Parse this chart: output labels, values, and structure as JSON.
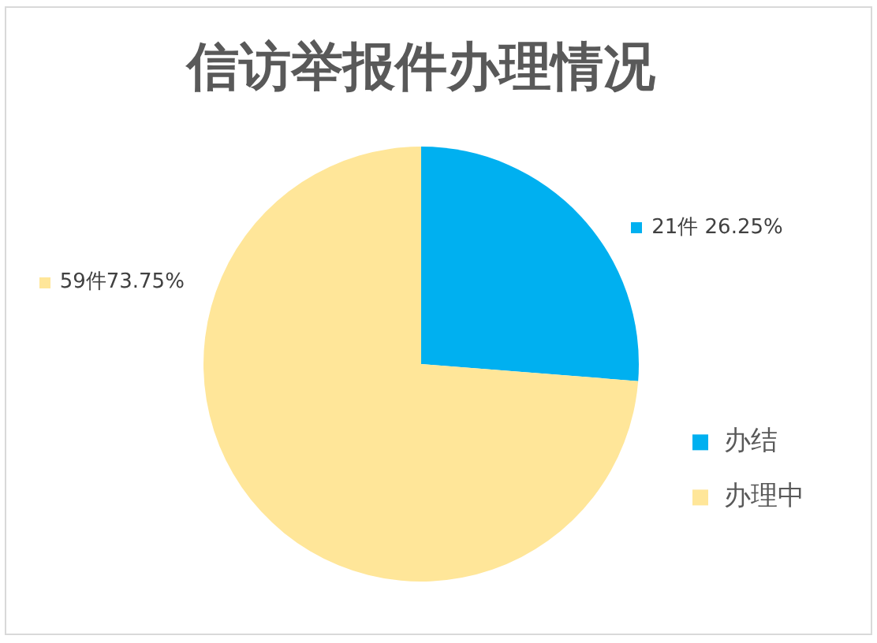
{
  "chart_data": {
    "type": "pie",
    "title": "信访举报件办理情况",
    "categories": [
      "办结",
      "办理中"
    ],
    "values": [
      21,
      59
    ],
    "colors": [
      "#00b0f0",
      "#ffe699"
    ],
    "value_labels": [
      "21件 26.25%",
      "59件73.75%"
    ],
    "legend": "right"
  }
}
